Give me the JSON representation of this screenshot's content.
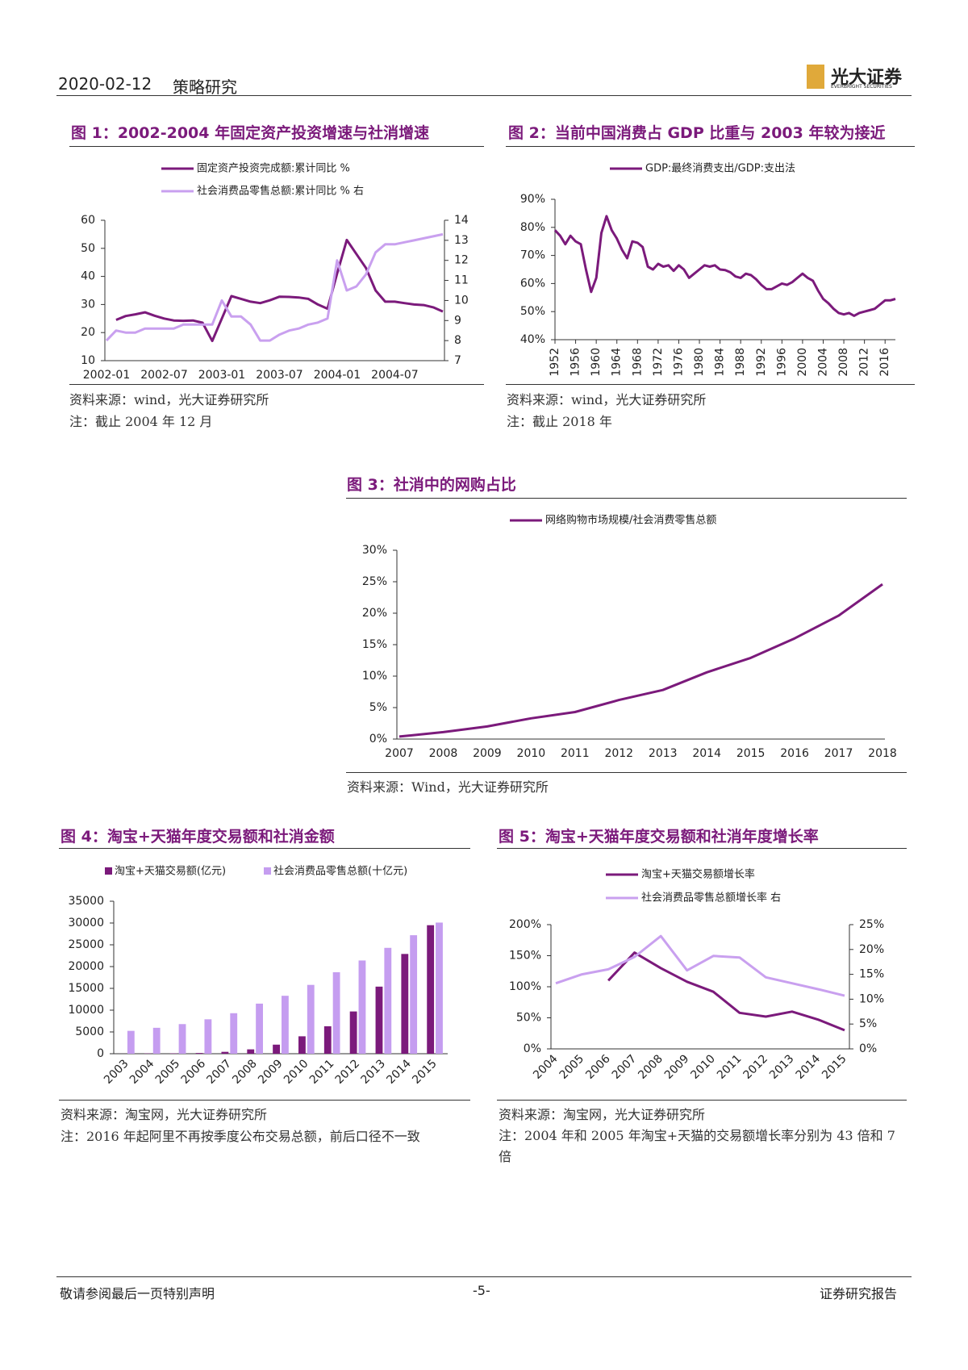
{
  "header": {
    "date": "2020-02-12",
    "section": "策略研究",
    "logo": "光大证券",
    "logo_en": "EVERBRIGHT SECURITIES"
  },
  "chart_data": [
    {
      "type": "line",
      "title": "图 1：2002-2004 年固定资产投资增速与社消增速",
      "source": "资料来源：wind，光大证券研究所",
      "note": "注：截止 2004 年 12 月",
      "categories": [
        "2002-01",
        null,
        null,
        null,
        null,
        null,
        "2002-07",
        null,
        null,
        null,
        null,
        null,
        "2003-01",
        null,
        null,
        null,
        null,
        null,
        "2003-07",
        null,
        null,
        null,
        null,
        null,
        "2004-01",
        null,
        null,
        null,
        null,
        null,
        "2004-07",
        null,
        null,
        null,
        null,
        null
      ],
      "ylim": [
        10,
        60
      ],
      "yticks": [
        10,
        20,
        30,
        40,
        50,
        60
      ],
      "y2lim": [
        7,
        14
      ],
      "y2ticks": [
        7,
        8,
        9,
        10,
        11,
        12,
        13,
        14
      ],
      "series": [
        {
          "name": "固定资产投资完成额:累计同比 %",
          "color": "#7b1a7b",
          "values": [
            null,
            24.5,
            25.9,
            26.5,
            27.2,
            26,
            25,
            24.3,
            24.2,
            24.3,
            23.5,
            17,
            25,
            33,
            32,
            31,
            30.5,
            31.5,
            32.8,
            32.7,
            32.5,
            32,
            30,
            28.5,
            41,
            53,
            48,
            43,
            35,
            31,
            31,
            30.5,
            30,
            29.8,
            29,
            27.5
          ]
        },
        {
          "name": "社会消费品零售总额:累计同比 % 右",
          "color": "#c9a0ef",
          "axis": "y2",
          "values": [
            8,
            8.5,
            8.4,
            8.4,
            8.6,
            8.6,
            8.6,
            8.6,
            8.8,
            8.8,
            8.8,
            8.8,
            10,
            9.2,
            9.2,
            8.8,
            8,
            8,
            8.3,
            8.5,
            8.6,
            8.8,
            8.9,
            9.1,
            12,
            10.5,
            10.7,
            11.3,
            12.4,
            12.8,
            12.8,
            12.9,
            13,
            13.1,
            13.2,
            13.3
          ]
        }
      ]
    },
    {
      "type": "line",
      "title": "图 2：当前中国消费占 GDP 比重与 2003 年较为接近",
      "source": "资料来源：wind，光大证券研究所",
      "note": "注：截止 2018 年",
      "x": [
        1952,
        1953,
        1954,
        1955,
        1956,
        1957,
        1958,
        1959,
        1960,
        1961,
        1962,
        1963,
        1964,
        1965,
        1966,
        1967,
        1968,
        1969,
        1970,
        1971,
        1972,
        1973,
        1974,
        1975,
        1976,
        1977,
        1978,
        1979,
        1980,
        1981,
        1982,
        1983,
        1984,
        1985,
        1986,
        1987,
        1988,
        1989,
        1990,
        1991,
        1992,
        1993,
        1994,
        1995,
        1996,
        1997,
        1998,
        1999,
        2000,
        2001,
        2002,
        2003,
        2004,
        2005,
        2006,
        2007,
        2008,
        2009,
        2010,
        2011,
        2012,
        2013,
        2014,
        2015,
        2016,
        2017,
        2018
      ],
      "xlim": [
        1952,
        2018
      ],
      "xticks": [
        1952,
        1956,
        1960,
        1964,
        1968,
        1972,
        1976,
        1980,
        1984,
        1988,
        1992,
        1996,
        2000,
        2004,
        2008,
        2012,
        2016
      ],
      "ylim": [
        40,
        90
      ],
      "yticks": [
        {
          "value": 40,
          "label": "40%"
        },
        {
          "value": 50,
          "label": "50%"
        },
        {
          "value": 60,
          "label": "60%"
        },
        {
          "value": 70,
          "label": "70%"
        },
        {
          "value": 80,
          "label": "80%"
        },
        {
          "value": 90,
          "label": "90%"
        }
      ],
      "series": [
        {
          "name": "GDP:最终消费支出/GDP:支出法",
          "color": "#7b1a7b",
          "values": [
            79,
            77,
            74,
            77,
            75,
            74,
            65,
            57,
            62,
            78,
            84,
            79,
            76,
            72,
            69,
            75,
            74.5,
            73,
            66,
            65,
            67,
            66,
            66.5,
            64.5,
            66.5,
            65,
            62,
            63.5,
            65,
            66.5,
            66,
            66.5,
            65,
            64.8,
            64,
            62.5,
            62,
            63.5,
            63,
            61.5,
            59.5,
            58,
            58,
            59,
            60,
            59.5,
            60.5,
            62,
            63.5,
            62,
            61,
            57.5,
            54.5,
            53,
            51,
            49.5,
            49,
            49.5,
            48.5,
            49.5,
            50,
            50.5,
            51,
            52.5,
            54,
            54,
            54.5
          ]
        }
      ]
    },
    {
      "type": "line",
      "title": "图 3：社消中的网购占比",
      "source": "资料来源：Wind，光大证券研究所",
      "categories": [
        "2007",
        "2008",
        "2009",
        "2010",
        "2011",
        "2012",
        "2013",
        "2014",
        "2015",
        "2016",
        "2017",
        "2018"
      ],
      "ylim": [
        0,
        30
      ],
      "yticks": [
        {
          "value": 0,
          "label": "0%"
        },
        {
          "value": 5,
          "label": "5%"
        },
        {
          "value": 10,
          "label": "10%"
        },
        {
          "value": 15,
          "label": "15%"
        },
        {
          "value": 20,
          "label": "20%"
        },
        {
          "value": 25,
          "label": "25%"
        },
        {
          "value": 30,
          "label": "30%"
        }
      ],
      "series": [
        {
          "name": "网络购物市场规模/社会消费零售总额",
          "color": "#7b1a7b",
          "values": [
            0.4,
            1.1,
            2,
            3.3,
            4.3,
            6.2,
            7.8,
            10.6,
            12.9,
            16,
            19.6,
            24.6
          ]
        }
      ]
    },
    {
      "type": "bar",
      "title": "图 4：淘宝+天猫年度交易额和社消金额",
      "source": "资料来源：淘宝网，光大证券研究所",
      "note": "注：2016 年起阿里不再按季度公布交易总额，前后口径不一致",
      "categories": [
        "2003",
        "2004",
        "2005",
        "2006",
        "2007",
        "2008",
        "2009",
        "2010",
        "2011",
        "2012",
        "2013",
        "2014",
        "2015"
      ],
      "ylim": [
        0,
        35000
      ],
      "yticks": [
        0,
        5000,
        10000,
        15000,
        20000,
        25000,
        30000,
        35000
      ],
      "series": [
        {
          "name": "淘宝+天猫交易额(亿元)",
          "color": "#7b1a7b",
          "values": [
            10,
            68,
            80,
            169,
            433,
            999,
            2083,
            4000,
            6300,
            9700,
            15400,
            22900,
            29500
          ]
        },
        {
          "name": "社会消费品零售总额(十亿元)",
          "color": "#c59df0",
          "values": [
            5250,
            5950,
            6800,
            7900,
            9300,
            11500,
            13300,
            15800,
            18700,
            21400,
            24300,
            27200,
            30100
          ]
        }
      ]
    },
    {
      "type": "line",
      "title": "图 5：淘宝+天猫年度交易额和社消年度增长率",
      "source": "资料来源：淘宝网，光大证券研究所",
      "note": "注：2004 年和 2005 年淘宝+天猫的交易额增长率分别为 43 倍和 7 倍",
      "categories": [
        "2004",
        "2005",
        "2006",
        "2007",
        "2008",
        "2009",
        "2010",
        "2011",
        "2012",
        "2013",
        "2014",
        "2015"
      ],
      "ylim": [
        0,
        200
      ],
      "yticks": [
        {
          "value": 0,
          "label": "0%"
        },
        {
          "value": 50,
          "label": "50%"
        },
        {
          "value": 100,
          "label": "100%"
        },
        {
          "value": 150,
          "label": "150%"
        },
        {
          "value": 200,
          "label": "200%"
        }
      ],
      "y2lim": [
        0,
        25
      ],
      "y2ticks": [
        {
          "value": 0,
          "label": "0%"
        },
        {
          "value": 5,
          "label": "5%"
        },
        {
          "value": 10,
          "label": "10%"
        },
        {
          "value": 15,
          "label": "15%"
        },
        {
          "value": 20,
          "label": "20%"
        },
        {
          "value": 25,
          "label": "25%"
        }
      ],
      "series": [
        {
          "name": "淘宝+天猫交易额增长率",
          "color": "#7b1a7b",
          "values": [
            null,
            null,
            110,
            155,
            130,
            108,
            92,
            58,
            52,
            60,
            47,
            30
          ]
        },
        {
          "name": "社会消费品零售总额增长率 右",
          "color": "#c9a0ef",
          "axis": "y2",
          "values": [
            13.2,
            15,
            16,
            18.5,
            22.7,
            15.8,
            18.7,
            18.4,
            14.4,
            13.2,
            12,
            10.7
          ]
        }
      ]
    }
  ],
  "footer": {
    "left": "敬请参阅最后一页特别声明",
    "page": "-5-",
    "right": "证券研究报告"
  }
}
